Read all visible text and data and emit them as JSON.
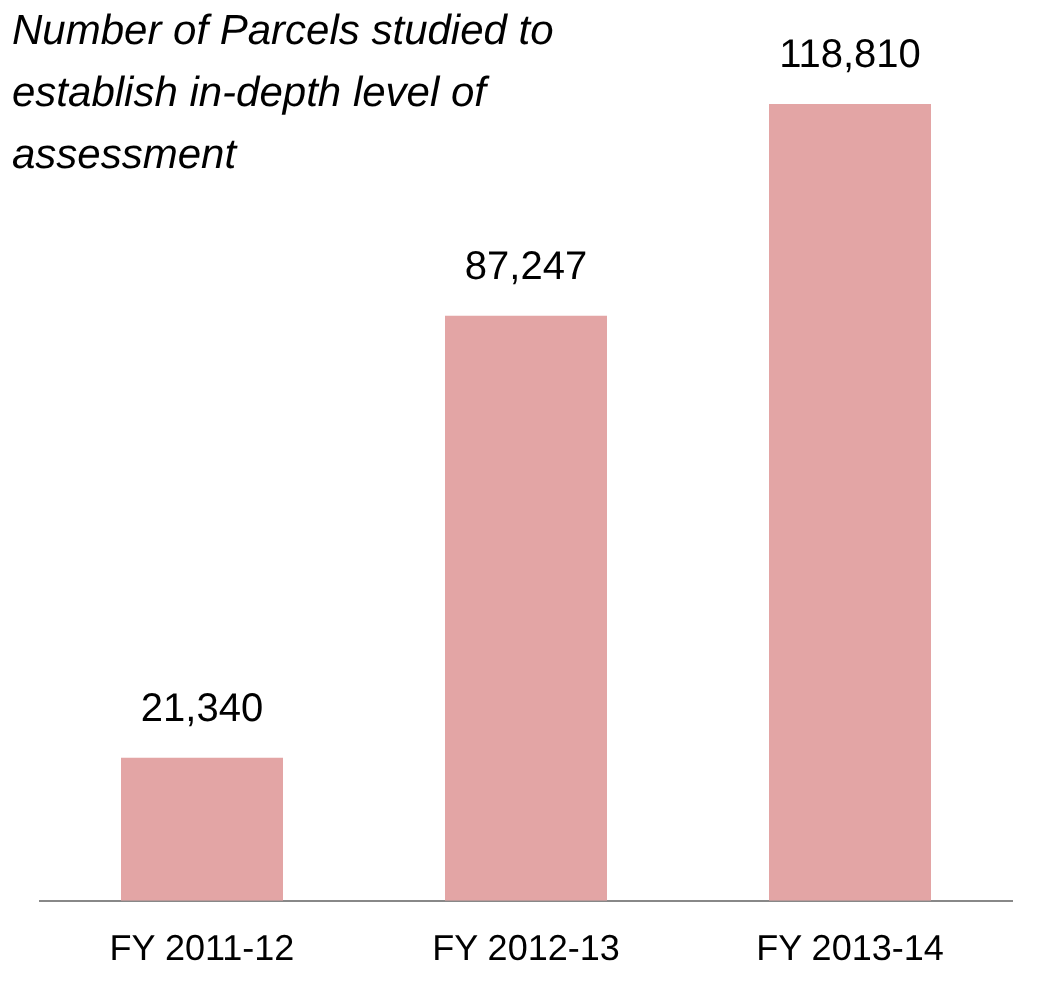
{
  "chart_data": {
    "type": "bar",
    "title": "Number of Parcels studied to establish in-depth level of assessment",
    "categories": [
      "FY 2011-12",
      "FY 2012-13",
      "FY 2013-14"
    ],
    "values": [
      21340,
      87247,
      118810
    ],
    "color": "#e3a5a5",
    "value_labels": [
      "21,340",
      "87,247",
      "118,810"
    ]
  }
}
